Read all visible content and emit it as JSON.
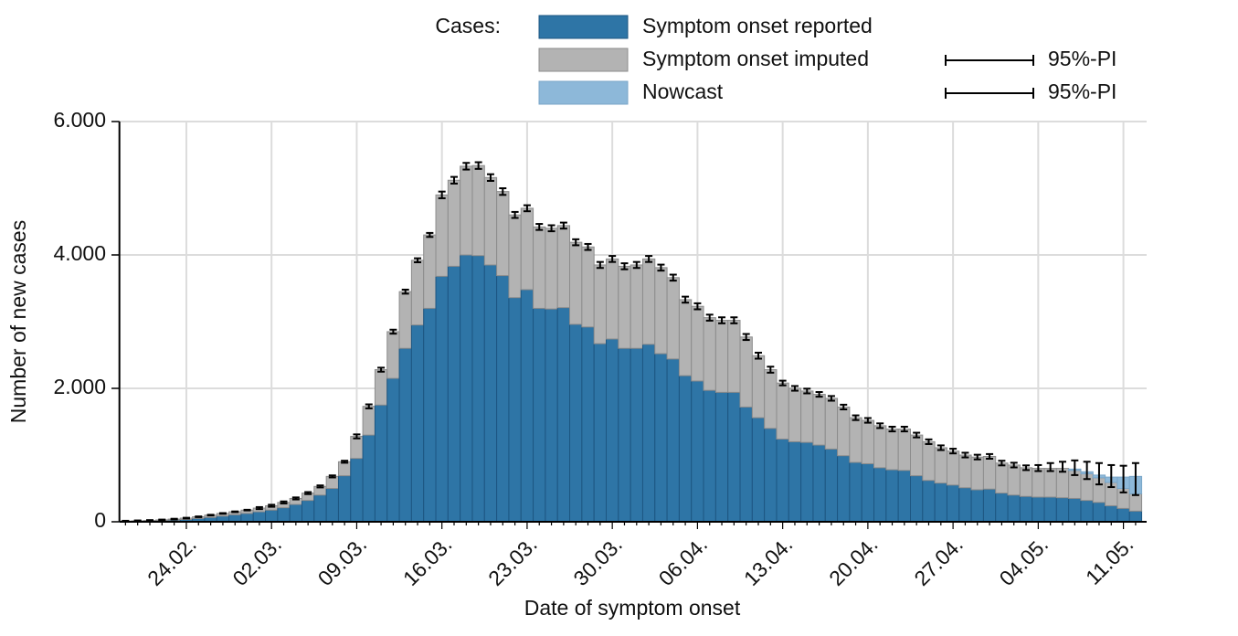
{
  "chart_data": {
    "type": "bar",
    "stacked": true,
    "x_label": "Date of symptom onset",
    "y_label": "Number of new cases",
    "legend_title": "Cases:",
    "grid": true,
    "categories": [
      null,
      null,
      null,
      null,
      null,
      "24.02.",
      null,
      null,
      null,
      null,
      null,
      null,
      "02.03.",
      null,
      null,
      null,
      null,
      null,
      null,
      "09.03.",
      null,
      null,
      null,
      null,
      null,
      null,
      "16.03.",
      null,
      null,
      null,
      null,
      null,
      null,
      "23.03.",
      null,
      null,
      null,
      null,
      null,
      null,
      "30.03.",
      null,
      null,
      null,
      null,
      null,
      null,
      "06.04.",
      null,
      null,
      null,
      null,
      null,
      null,
      "13.04.",
      null,
      null,
      null,
      null,
      null,
      null,
      "20.04.",
      null,
      null,
      null,
      null,
      null,
      null,
      "27.04.",
      null,
      null,
      null,
      null,
      null,
      null,
      "04.05.",
      null,
      null,
      null,
      null,
      null,
      null,
      "11.05.",
      null
    ],
    "ylim": [
      0,
      6000
    ],
    "yticks": [
      0,
      {
        "value": 2000,
        "label": "2.000"
      },
      {
        "value": 4000,
        "label": "4.000"
      },
      {
        "value": 6000,
        "label": "6.000"
      }
    ],
    "series": [
      {
        "name": "Symptom onset reported",
        "color": "#2e75a6",
        "edge": "#1d5682",
        "values": [
          5,
          8,
          12,
          18,
          25,
          35,
          50,
          65,
          85,
          105,
          125,
          150,
          175,
          210,
          260,
          320,
          400,
          500,
          690,
          950,
          1300,
          1750,
          2150,
          2600,
          2950,
          3200,
          3680,
          3830,
          4000,
          3990,
          3850,
          3690,
          3360,
          3480,
          3200,
          3190,
          3210,
          2960,
          2920,
          2670,
          2740,
          2600,
          2600,
          2660,
          2520,
          2440,
          2190,
          2110,
          1970,
          1940,
          1940,
          1720,
          1560,
          1400,
          1240,
          1200,
          1190,
          1150,
          1090,
          990,
          890,
          870,
          810,
          780,
          770,
          690,
          620,
          580,
          550,
          510,
          480,
          490,
          430,
          400,
          380,
          370,
          370,
          360,
          350,
          320,
          290,
          240,
          200,
          160
        ]
      },
      {
        "name": "Symptom onset imputed",
        "color": "#b3b3b3",
        "edge": "#8c8c8c",
        "interval_label": "95%-PI",
        "values": [
          5,
          7,
          8,
          10,
          15,
          20,
          25,
          35,
          40,
          45,
          50,
          55,
          65,
          80,
          90,
          110,
          130,
          180,
          210,
          330,
          430,
          530,
          700,
          850,
          970,
          1100,
          1220,
          1290,
          1330,
          1350,
          1310,
          1260,
          1240,
          1220,
          1220,
          1210,
          1230,
          1230,
          1200,
          1180,
          1200,
          1230,
          1250,
          1280,
          1290,
          1220,
          1140,
          1120,
          1090,
          1080,
          1080,
          1050,
          930,
          880,
          840,
          800,
          770,
          760,
          760,
          730,
          670,
          650,
          630,
          610,
          620,
          610,
          580,
          530,
          510,
          490,
          490,
          490,
          450,
          450,
          430,
          430,
          430,
          440,
          420,
          400,
          370,
          350,
          300,
          260
        ]
      },
      {
        "name": "Nowcast",
        "color": "#8db8d9",
        "edge": "#7aa6c8",
        "interval_label": "95%-PI",
        "values": [
          null,
          null,
          null,
          null,
          null,
          null,
          null,
          null,
          null,
          null,
          null,
          null,
          null,
          null,
          null,
          null,
          null,
          null,
          null,
          null,
          null,
          null,
          null,
          null,
          null,
          null,
          null,
          null,
          null,
          null,
          null,
          null,
          null,
          null,
          null,
          null,
          null,
          null,
          null,
          null,
          null,
          null,
          null,
          null,
          null,
          null,
          null,
          null,
          null,
          null,
          null,
          null,
          null,
          null,
          null,
          null,
          null,
          null,
          null,
          null,
          null,
          null,
          null,
          null,
          null,
          null,
          null,
          null,
          null,
          null,
          null,
          null,
          null,
          null,
          null,
          null,
          null,
          null,
          20,
          30,
          40,
          80,
          170,
          260
        ]
      }
    ],
    "intervals": {
      "lower": [
        5,
        10,
        15,
        23,
        35,
        50,
        70,
        95,
        120,
        145,
        170,
        190,
        225,
        275,
        335,
        415,
        515,
        665,
        885,
        1250,
        1700,
        2250,
        2820,
        3420,
        3890,
        4270,
        4850,
        5070,
        5280,
        5290,
        5110,
        4900,
        4555,
        4655,
        4375,
        4355,
        4395,
        4145,
        4075,
        3805,
        3895,
        3785,
        3805,
        3895,
        3765,
        3615,
        3285,
        3185,
        3015,
        2975,
        2975,
        2725,
        2445,
        2235,
        2045,
        1965,
        1925,
        1875,
        1815,
        1685,
        1525,
        1485,
        1405,
        1355,
        1355,
        1265,
        1165,
        1075,
        1025,
        965,
        935,
        945,
        845,
        815,
        775,
        760,
        760,
        750,
        700,
        640,
        560,
        520,
        440,
        400
      ],
      "upper": [
        15,
        20,
        25,
        33,
        45,
        60,
        80,
        105,
        130,
        155,
        180,
        220,
        255,
        305,
        365,
        445,
        545,
        695,
        915,
        1310,
        1760,
        2310,
        2880,
        3480,
        3950,
        4330,
        4950,
        5170,
        5380,
        5390,
        5210,
        5000,
        4645,
        4745,
        4465,
        4445,
        4485,
        4235,
        4165,
        3895,
        3985,
        3875,
        3895,
        3985,
        3855,
        3705,
        3375,
        3275,
        3105,
        3065,
        3065,
        2815,
        2535,
        2325,
        2115,
        2035,
        1995,
        1945,
        1885,
        1755,
        1595,
        1555,
        1475,
        1425,
        1425,
        1335,
        1235,
        1145,
        1095,
        1035,
        1005,
        1015,
        915,
        885,
        845,
        850,
        880,
        900,
        920,
        900,
        880,
        850,
        840,
        880
      ]
    }
  }
}
